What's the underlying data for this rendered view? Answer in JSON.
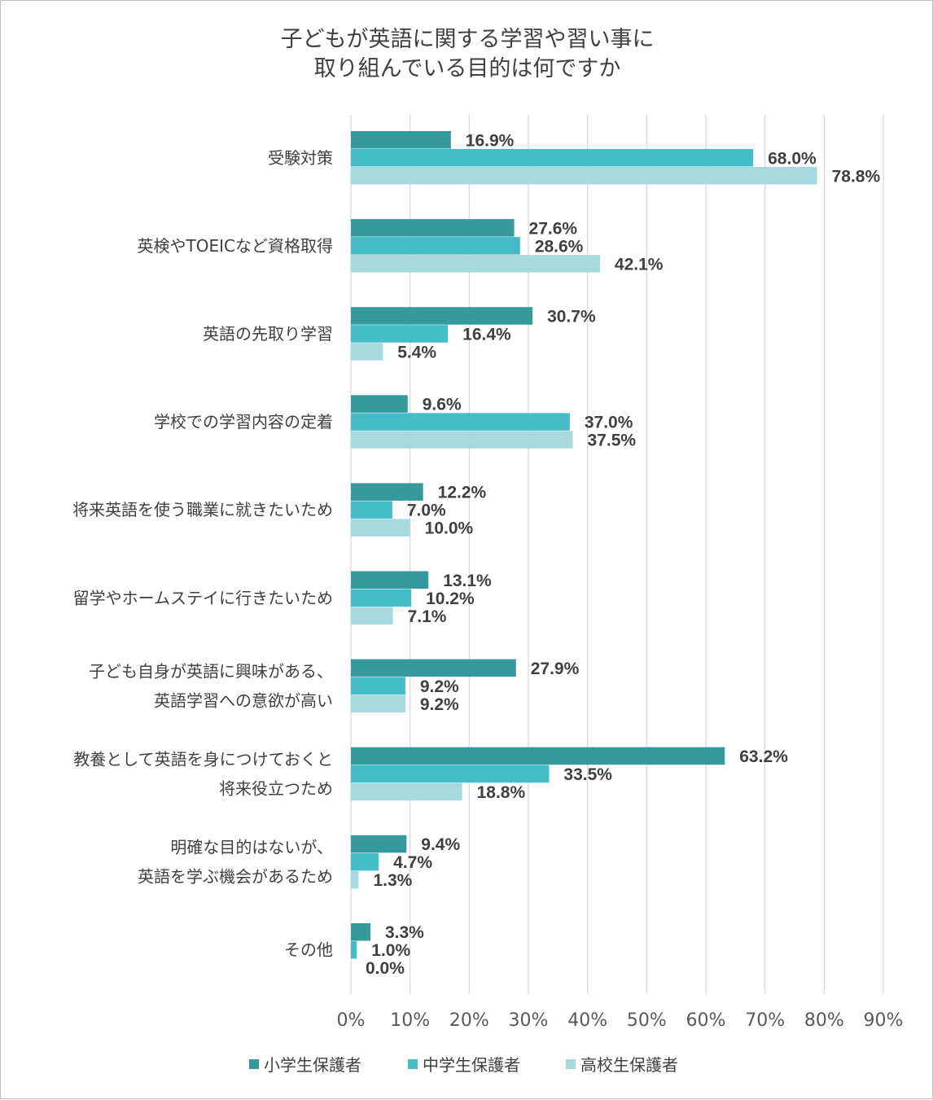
{
  "chart_data": {
    "type": "bar",
    "orientation": "horizontal",
    "title": [
      "子どもが英語に関する学習や習い事に",
      "取り組んでいる目的は何ですか"
    ],
    "categories": [
      [
        "受験対策"
      ],
      [
        "英検やTOEICなど資格取得"
      ],
      [
        "英語の先取り学習"
      ],
      [
        "学校での学習内容の定着"
      ],
      [
        "将来英語を使う職業に就きたいため"
      ],
      [
        "留学やホームステイに行きたいため"
      ],
      [
        "子ども自身が英語に興味がある、",
        "英語学習への意欲が高い"
      ],
      [
        "教養として英語を身につけておくと",
        "将来役立つため"
      ],
      [
        "明確な目的はないが、",
        "英語を学ぶ機会があるため"
      ],
      [
        "その他"
      ]
    ],
    "series": [
      {
        "name": "小学生保護者",
        "color": "#36999b",
        "values": [
          16.9,
          27.6,
          30.7,
          9.6,
          12.2,
          13.1,
          27.9,
          63.2,
          9.4,
          3.3
        ],
        "labels": [
          "16.9%",
          "27.6%",
          "30.7%",
          "9.6%",
          "12.2%",
          "13.1%",
          "27.9%",
          "63.2%",
          "9.4%",
          "3.3%"
        ]
      },
      {
        "name": "中学生保護者",
        "color": "#45bdc8",
        "values": [
          68.0,
          28.6,
          16.4,
          37.0,
          7.0,
          10.2,
          9.2,
          33.5,
          4.7,
          1.0
        ],
        "labels": [
          "68.0%",
          "28.6%",
          "16.4%",
          "37.0%",
          "7.0%",
          "10.2%",
          "9.2%",
          "33.5%",
          "4.7%",
          "1.0%"
        ]
      },
      {
        "name": "高校生保護者",
        "color": "#a8d9de",
        "values": [
          78.8,
          42.1,
          5.4,
          37.5,
          10.0,
          7.1,
          9.2,
          18.8,
          1.3,
          0.0
        ],
        "labels": [
          "78.8%",
          "42.1%",
          "5.4%",
          "37.5%",
          "10.0%",
          "7.1%",
          "9.2%",
          "18.8%",
          "1.3%",
          "0.0%"
        ]
      }
    ],
    "xlim": [
      0,
      90
    ],
    "xticks": [
      "0%",
      "10%",
      "20%",
      "30%",
      "40%",
      "50%",
      "60%",
      "70%",
      "80%",
      "90%"
    ],
    "grid": true,
    "legend": "bottom"
  }
}
